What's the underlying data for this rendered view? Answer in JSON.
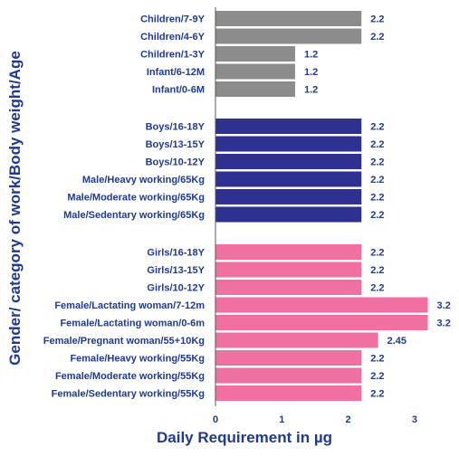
{
  "chart_data": {
    "type": "bar",
    "orientation": "horizontal",
    "xlabel": "Daily Requirement in µg",
    "ylabel": "Gender/ category of work/Body weight/Age",
    "xlim": [
      0,
      3.2
    ],
    "xticks": [
      "0",
      "1",
      "2",
      "3"
    ],
    "grid": false,
    "groups": [
      {
        "color": "#8c8c8c",
        "bars": [
          {
            "label": "Children/7-9Y",
            "value": 2.2,
            "value_label": "2.2"
          },
          {
            "label": "Children/4-6Y",
            "value": 2.2,
            "value_label": "2.2"
          },
          {
            "label": "Children/1-3Y",
            "value": 1.2,
            "value_label": "1.2"
          },
          {
            "label": "Infant/6-12M",
            "value": 1.2,
            "value_label": "1.2"
          },
          {
            "label": "Infant/0-6M",
            "value": 1.2,
            "value_label": "1.2"
          }
        ]
      },
      {
        "color": "#2e3192",
        "bars": [
          {
            "label": "Boys/16-18Y",
            "value": 2.2,
            "value_label": "2.2"
          },
          {
            "label": "Boys/13-15Y",
            "value": 2.2,
            "value_label": "2.2"
          },
          {
            "label": "Boys/10-12Y",
            "value": 2.2,
            "value_label": "2.2"
          },
          {
            "label": "Male/Heavy working/65Kg",
            "value": 2.2,
            "value_label": "2.2"
          },
          {
            "label": "Male/Moderate working/65Kg",
            "value": 2.2,
            "value_label": "2.2"
          },
          {
            "label": "Male/Sedentary working/65Kg",
            "value": 2.2,
            "value_label": "2.2"
          }
        ]
      },
      {
        "color": "#f0719f",
        "bars": [
          {
            "label": "Girls/16-18Y",
            "value": 2.2,
            "value_label": "2.2"
          },
          {
            "label": "Girls/13-15Y",
            "value": 2.2,
            "value_label": "2.2"
          },
          {
            "label": "Girls/10-12Y",
            "value": 2.2,
            "value_label": "2.2"
          },
          {
            "label": "Female/Lactating woman/7-12m",
            "value": 3.2,
            "value_label": "3.2"
          },
          {
            "label": "Female/Lactating woman/0-6m",
            "value": 3.2,
            "value_label": "3.2"
          },
          {
            "label": "Female/Pregnant woman/55+10Kg",
            "value": 2.45,
            "value_label": "2.45"
          },
          {
            "label": "Female/Heavy working/55Kg",
            "value": 2.2,
            "value_label": "2.2"
          },
          {
            "label": "Female/Moderate working/55Kg",
            "value": 2.2,
            "value_label": "2.2"
          },
          {
            "label": "Female/Sedentary working/55Kg",
            "value": 2.2,
            "value_label": "2.2"
          }
        ]
      }
    ],
    "label_color": "#1f3a93",
    "axis_color": "#595959"
  }
}
